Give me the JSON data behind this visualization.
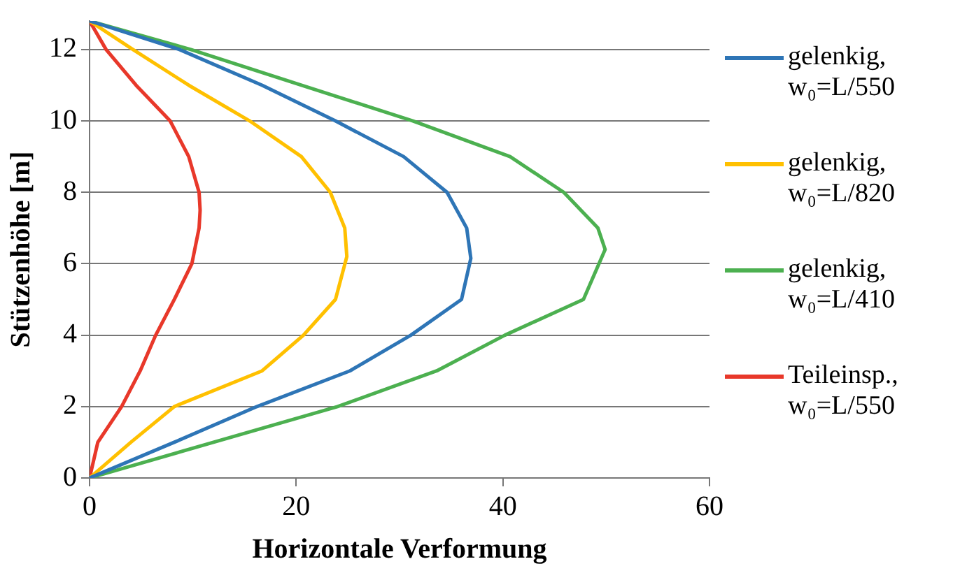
{
  "chart_data": {
    "type": "line",
    "xlabel": "Horizontale Verformung",
    "ylabel": "Stützenhöhe [m]",
    "xlim": [
      0,
      60
    ],
    "xticks": [
      0,
      20,
      40,
      60
    ],
    "ylim": [
      0,
      12.8
    ],
    "yticks": [
      0,
      2,
      4,
      6,
      8,
      10,
      12
    ],
    "grid": "y",
    "legend": "right",
    "marker": "none",
    "line_style": "solid",
    "series": [
      {
        "name": "gelenkig, w₀=L/550",
        "color": "#2e75b6",
        "x": [
          0,
          8.2,
          16.2,
          25.2,
          31.1,
          36,
          36.9,
          36.5,
          34.6,
          30.4,
          23.8,
          16.7,
          8.7,
          0
        ],
        "values": [
          0,
          1,
          2,
          3,
          4,
          5,
          6.15,
          7,
          8,
          9,
          10,
          11,
          12,
          12.8
        ]
      },
      {
        "name": "gelenkig, w₀=L/820",
        "color": "#ffc000",
        "x": [
          0,
          4,
          8.2,
          16.7,
          20.7,
          23.8,
          24.9,
          24.7,
          23.3,
          20.5,
          15.5,
          9.6,
          4.2,
          0
        ],
        "values": [
          0,
          1,
          2,
          3,
          4,
          5,
          6.2,
          7,
          8,
          9,
          10,
          11,
          12,
          12.8
        ]
      },
      {
        "name": "gelenkig, w₀=L/410",
        "color": "#4cb050",
        "x": [
          0,
          12,
          24,
          33.6,
          40.2,
          47.8,
          49.9,
          49.2,
          45.9,
          40.7,
          31.3,
          20.5,
          9.8,
          0
        ],
        "values": [
          0,
          1,
          2,
          3,
          4,
          5,
          6.4,
          7,
          8,
          9,
          10,
          11,
          12,
          12.8
        ]
      },
      {
        "name": "Teileinsp., w₀=L/550",
        "color": "#e8382a",
        "x": [
          0,
          0.8,
          3.1,
          4.9,
          6.4,
          8.2,
          9.9,
          10.6,
          10.7,
          10.6,
          9.6,
          7.8,
          4.5,
          1.6,
          0
        ],
        "values": [
          0,
          1,
          2,
          3,
          4,
          5,
          6,
          7,
          7.5,
          8,
          9,
          10,
          11,
          12,
          12.8
        ]
      }
    ]
  }
}
